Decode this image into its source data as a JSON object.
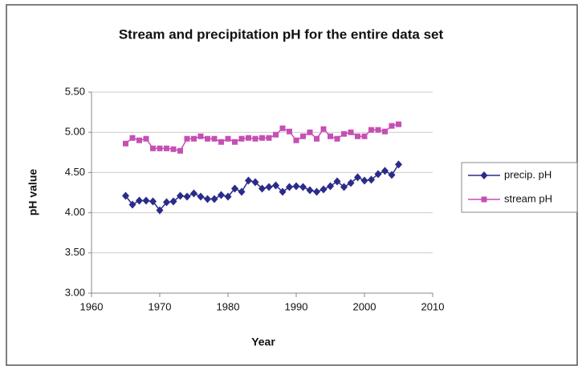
{
  "chart_data": {
    "type": "line",
    "title": "Stream and precipitation pH for the entire data set",
    "x_label": "Year",
    "y_label": "pH value",
    "x": [
      1965,
      1966,
      1967,
      1968,
      1969,
      1970,
      1971,
      1972,
      1973,
      1974,
      1975,
      1976,
      1977,
      1978,
      1979,
      1980,
      1981,
      1982,
      1983,
      1984,
      1985,
      1986,
      1987,
      1988,
      1989,
      1990,
      1991,
      1992,
      1993,
      1994,
      1995,
      1996,
      1997,
      1998,
      1999,
      2000,
      2001,
      2002,
      2003,
      2004,
      2005
    ],
    "series": [
      {
        "name": "precip. pH",
        "color": "#2b2b8a",
        "marker": "diamond",
        "values": [
          4.21,
          4.1,
          4.15,
          4.15,
          4.14,
          4.03,
          4.13,
          4.14,
          4.21,
          4.2,
          4.24,
          4.2,
          4.17,
          4.17,
          4.22,
          4.2,
          4.3,
          4.26,
          4.4,
          4.38,
          4.3,
          4.32,
          4.34,
          4.26,
          4.32,
          4.33,
          4.32,
          4.28,
          4.26,
          4.29,
          4.33,
          4.39,
          4.32,
          4.37,
          4.44,
          4.4,
          4.41,
          4.48,
          4.52,
          4.47,
          4.6
        ]
      },
      {
        "name": "stream pH",
        "color": "#c64fb4",
        "marker": "square",
        "values": [
          4.86,
          4.93,
          4.9,
          4.92,
          4.8,
          4.8,
          4.8,
          4.79,
          4.77,
          4.92,
          4.92,
          4.95,
          4.92,
          4.92,
          4.88,
          4.92,
          4.88,
          4.92,
          4.93,
          4.92,
          4.93,
          4.93,
          4.97,
          5.05,
          5.01,
          4.9,
          4.95,
          5.0,
          4.92,
          5.04,
          4.95,
          4.92,
          4.98,
          5.0,
          4.95,
          4.95,
          5.03,
          5.03,
          5.01,
          5.08,
          5.1
        ]
      }
    ],
    "xlim": [
      1960,
      2010
    ],
    "xticks": [
      1960,
      1970,
      1980,
      1990,
      2000,
      2010
    ],
    "ylim": [
      3.0,
      5.5
    ],
    "yticks": [
      {
        "value": 3.0,
        "label": "3.00"
      },
      {
        "value": 3.5,
        "label": "3.50"
      },
      {
        "value": 4.0,
        "label": "4.00"
      },
      {
        "value": 4.5,
        "label": "4.50"
      },
      {
        "value": 5.0,
        "label": "5.00"
      },
      {
        "value": 5.5,
        "label": "5.50"
      }
    ],
    "grid": true,
    "legend": "right"
  }
}
